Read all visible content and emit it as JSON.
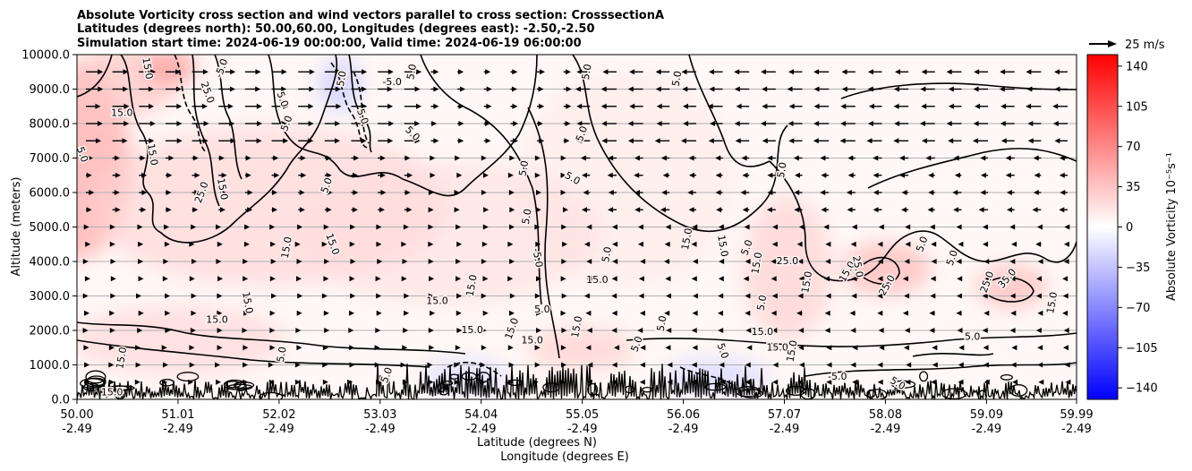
{
  "chart_data": {
    "type": "heatmap",
    "title_lines": [
      "Absolute Vorticity cross section and wind vectors parallel to cross section: CrosssectionA",
      "Latitudes (degrees north): 50.00,60.00, Longitudes (degrees east): -2.50,-2.50",
      "Simulation start time: 2024-06-19 00:00:00, Valid time: 2024-06-19 06:00:00"
    ],
    "ylabel": "Altitude (meters)",
    "xlabel_lines": [
      "Latitude (degrees N)",
      "Longitude (degrees E)"
    ],
    "xlim": [
      50.0,
      59.99
    ],
    "ylim": [
      0,
      10000
    ],
    "x_ticks": [
      {
        "value": 50.0,
        "lat": "50.00",
        "lon": "-2.49"
      },
      {
        "value": 51.01,
        "lat": "51.01",
        "lon": "-2.49"
      },
      {
        "value": 52.02,
        "lat": "52.02",
        "lon": "-2.49"
      },
      {
        "value": 53.03,
        "lat": "53.03",
        "lon": "-2.49"
      },
      {
        "value": 54.04,
        "lat": "54.04",
        "lon": "-2.49"
      },
      {
        "value": 55.05,
        "lat": "55.05",
        "lon": "-2.49"
      },
      {
        "value": 56.06,
        "lat": "56.06",
        "lon": "-2.49"
      },
      {
        "value": 57.07,
        "lat": "57.07",
        "lon": "-2.49"
      },
      {
        "value": 58.08,
        "lat": "58.08",
        "lon": "-2.49"
      },
      {
        "value": 59.09,
        "lat": "59.09",
        "lon": "-2.49"
      },
      {
        "value": 59.99,
        "lat": "59.99",
        "lon": "-2.49"
      }
    ],
    "y_ticks": [
      {
        "value": 0,
        "label": "0.0"
      },
      {
        "value": 1000,
        "label": "1000.0"
      },
      {
        "value": 2000,
        "label": "2000.0"
      },
      {
        "value": 3000,
        "label": "3000.0"
      },
      {
        "value": 4000,
        "label": "4000.0"
      },
      {
        "value": 5000,
        "label": "5000.0"
      },
      {
        "value": 6000,
        "label": "6000.0"
      },
      {
        "value": 7000,
        "label": "7000.0"
      },
      {
        "value": 8000,
        "label": "8000.0"
      },
      {
        "value": 9000,
        "label": "9000.0"
      },
      {
        "value": 10000,
        "label": "10000.0"
      }
    ],
    "horizontal_grid": true,
    "colorbar": {
      "label": "Absolute Vorticity 10⁻⁵s⁻¹",
      "range": [
        -150,
        150
      ],
      "ticks": [
        {
          "value": 140,
          "label": "140"
        },
        {
          "value": 105,
          "label": "105"
        },
        {
          "value": 70,
          "label": "70"
        },
        {
          "value": 35,
          "label": "35"
        },
        {
          "value": 0,
          "label": "0"
        },
        {
          "value": -35,
          "label": "−35"
        },
        {
          "value": -70,
          "label": "−70"
        },
        {
          "value": -105,
          "label": "−105"
        },
        {
          "value": -140,
          "label": "−140"
        }
      ],
      "colors": {
        "neg": "#0000ff",
        "zero": "#ffffff",
        "pos": "#ff0000"
      }
    },
    "quiver_key": {
      "label": "25 m/s",
      "speed": 25
    },
    "contour_labels": [
      {
        "text": "15.0",
        "x": 50.7,
        "y": 9600,
        "rot": 80
      },
      {
        "text": "15.0",
        "x": 50.45,
        "y": 8300,
        "rot": 0
      },
      {
        "text": "5.0",
        "x": 50.05,
        "y": 7100,
        "rot": 70
      },
      {
        "text": "15.0",
        "x": 50.75,
        "y": 7100,
        "rot": 80
      },
      {
        "text": "25.0",
        "x": 51.25,
        "y": 6000,
        "rot": -70
      },
      {
        "text": "15.0",
        "x": 51.45,
        "y": 6100,
        "rot": 80
      },
      {
        "text": "25.0",
        "x": 51.3,
        "y": 8900,
        "rot": 70
      },
      {
        "text": "-5.0",
        "x": 51.45,
        "y": 9600,
        "rot": -70
      },
      {
        "text": "5.0",
        "x": 52.1,
        "y": 8000,
        "rot": -70
      },
      {
        "text": "5.0",
        "x": 52.05,
        "y": 8700,
        "rot": 70
      },
      {
        "text": "5.0",
        "x": 52.5,
        "y": 6200,
        "rot": -70
      },
      {
        "text": "5.0",
        "x": 52.65,
        "y": 9300,
        "rot": -80
      },
      {
        "text": "5.0",
        "x": 52.85,
        "y": 8200,
        "rot": 70
      },
      {
        "text": "5.0",
        "x": 53.35,
        "y": 9500,
        "rot": -80
      },
      {
        "text": "-5.0",
        "x": 53.15,
        "y": 9200,
        "rot": 0
      },
      {
        "text": "5.0",
        "x": 53.35,
        "y": 7700,
        "rot": 45
      },
      {
        "text": "15.0",
        "x": 52.55,
        "y": 4500,
        "rot": 70
      },
      {
        "text": "15.0",
        "x": 52.1,
        "y": 4400,
        "rot": -80
      },
      {
        "text": "15.0",
        "x": 51.7,
        "y": 2800,
        "rot": 80
      },
      {
        "text": "15.0",
        "x": 51.4,
        "y": 2300,
        "rot": 0
      },
      {
        "text": "15.0",
        "x": 53.6,
        "y": 2850,
        "rot": 0
      },
      {
        "text": "15.0",
        "x": 53.95,
        "y": 3300,
        "rot": -80
      },
      {
        "text": "15.0",
        "x": 53.95,
        "y": 2000,
        "rot": 0
      },
      {
        "text": "-5.0",
        "x": 54.6,
        "y": 4100,
        "rot": 80
      },
      {
        "text": "5.0",
        "x": 54.5,
        "y": 5300,
        "rot": -80
      },
      {
        "text": "5.0",
        "x": 54.47,
        "y": 6700,
        "rot": -80
      },
      {
        "text": "5.0",
        "x": 54.95,
        "y": 6400,
        "rot": 30
      },
      {
        "text": "5.0",
        "x": 55.05,
        "y": 7700,
        "rot": -70
      },
      {
        "text": "5.0",
        "x": 55.1,
        "y": 9500,
        "rot": -80
      },
      {
        "text": "5.0",
        "x": 56.0,
        "y": 9300,
        "rot": -80
      },
      {
        "text": "15.0",
        "x": 55.2,
        "y": 3450,
        "rot": 0
      },
      {
        "text": "5.0",
        "x": 54.65,
        "y": 2600,
        "rot": 0
      },
      {
        "text": "5.0",
        "x": 55.3,
        "y": 4200,
        "rot": -80
      },
      {
        "text": "15.0",
        "x": 56.45,
        "y": 4450,
        "rot": 80
      },
      {
        "text": "15.0",
        "x": 56.1,
        "y": 4650,
        "rot": -80
      },
      {
        "text": "5.0",
        "x": 56.7,
        "y": 4400,
        "rot": -70
      },
      {
        "text": "15.0",
        "x": 56.85,
        "y": 1950,
        "rot": 0
      },
      {
        "text": "15.0",
        "x": 57.0,
        "y": 1500,
        "rot": 0
      },
      {
        "text": "5.0",
        "x": 57.05,
        "y": 6650,
        "rot": -80
      },
      {
        "text": "25.0",
        "x": 57.1,
        "y": 4000,
        "rot": 0
      },
      {
        "text": "15.0",
        "x": 56.8,
        "y": 3950,
        "rot": -80
      },
      {
        "text": "5.0",
        "x": 56.85,
        "y": 2800,
        "rot": -80
      },
      {
        "text": "15.0",
        "x": 57.3,
        "y": 3400,
        "rot": -80
      },
      {
        "text": "15.0",
        "x": 57.7,
        "y": 3700,
        "rot": -60
      },
      {
        "text": "25.0",
        "x": 57.8,
        "y": 3850,
        "rot": 80
      },
      {
        "text": "25.0",
        "x": 58.1,
        "y": 3300,
        "rot": -60
      },
      {
        "text": "5.0",
        "x": 58.45,
        "y": 4500,
        "rot": -70
      },
      {
        "text": "5.0",
        "x": 58.75,
        "y": 4100,
        "rot": -70
      },
      {
        "text": "25.0",
        "x": 59.1,
        "y": 3400,
        "rot": -70
      },
      {
        "text": "35.0",
        "x": 59.3,
        "y": 3500,
        "rot": -50
      },
      {
        "text": "15.0",
        "x": 59.75,
        "y": 2800,
        "rot": -80
      },
      {
        "text": "5.0",
        "x": 58.95,
        "y": 1800,
        "rot": 0
      },
      {
        "text": "-5.0",
        "x": 57.6,
        "y": 650,
        "rot": 0
      },
      {
        "text": "5.0",
        "x": 58.2,
        "y": 450,
        "rot": 30
      },
      {
        "text": "15.0",
        "x": 50.35,
        "y": 200,
        "rot": 0
      },
      {
        "text": "15.0",
        "x": 50.45,
        "y": 1200,
        "rot": -80
      },
      {
        "text": "5.0",
        "x": 52.05,
        "y": 1300,
        "rot": -80
      },
      {
        "text": "5.0",
        "x": 53.1,
        "y": 700,
        "rot": -70
      },
      {
        "text": "15.0",
        "x": 54.35,
        "y": 2050,
        "rot": -70
      },
      {
        "text": "15.0",
        "x": 55.0,
        "y": 2100,
        "rot": -80
      },
      {
        "text": "5.0",
        "x": 55.6,
        "y": 1600,
        "rot": -70
      },
      {
        "text": "15.0",
        "x": 54.55,
        "y": 1700,
        "rot": 0
      },
      {
        "text": "5.0",
        "x": 55.85,
        "y": 2200,
        "rot": -80
      },
      {
        "text": "5.0",
        "x": 56.45,
        "y": 1400,
        "rot": 70
      },
      {
        "text": "15.0",
        "x": 57.15,
        "y": 1400,
        "rot": -80
      }
    ]
  }
}
